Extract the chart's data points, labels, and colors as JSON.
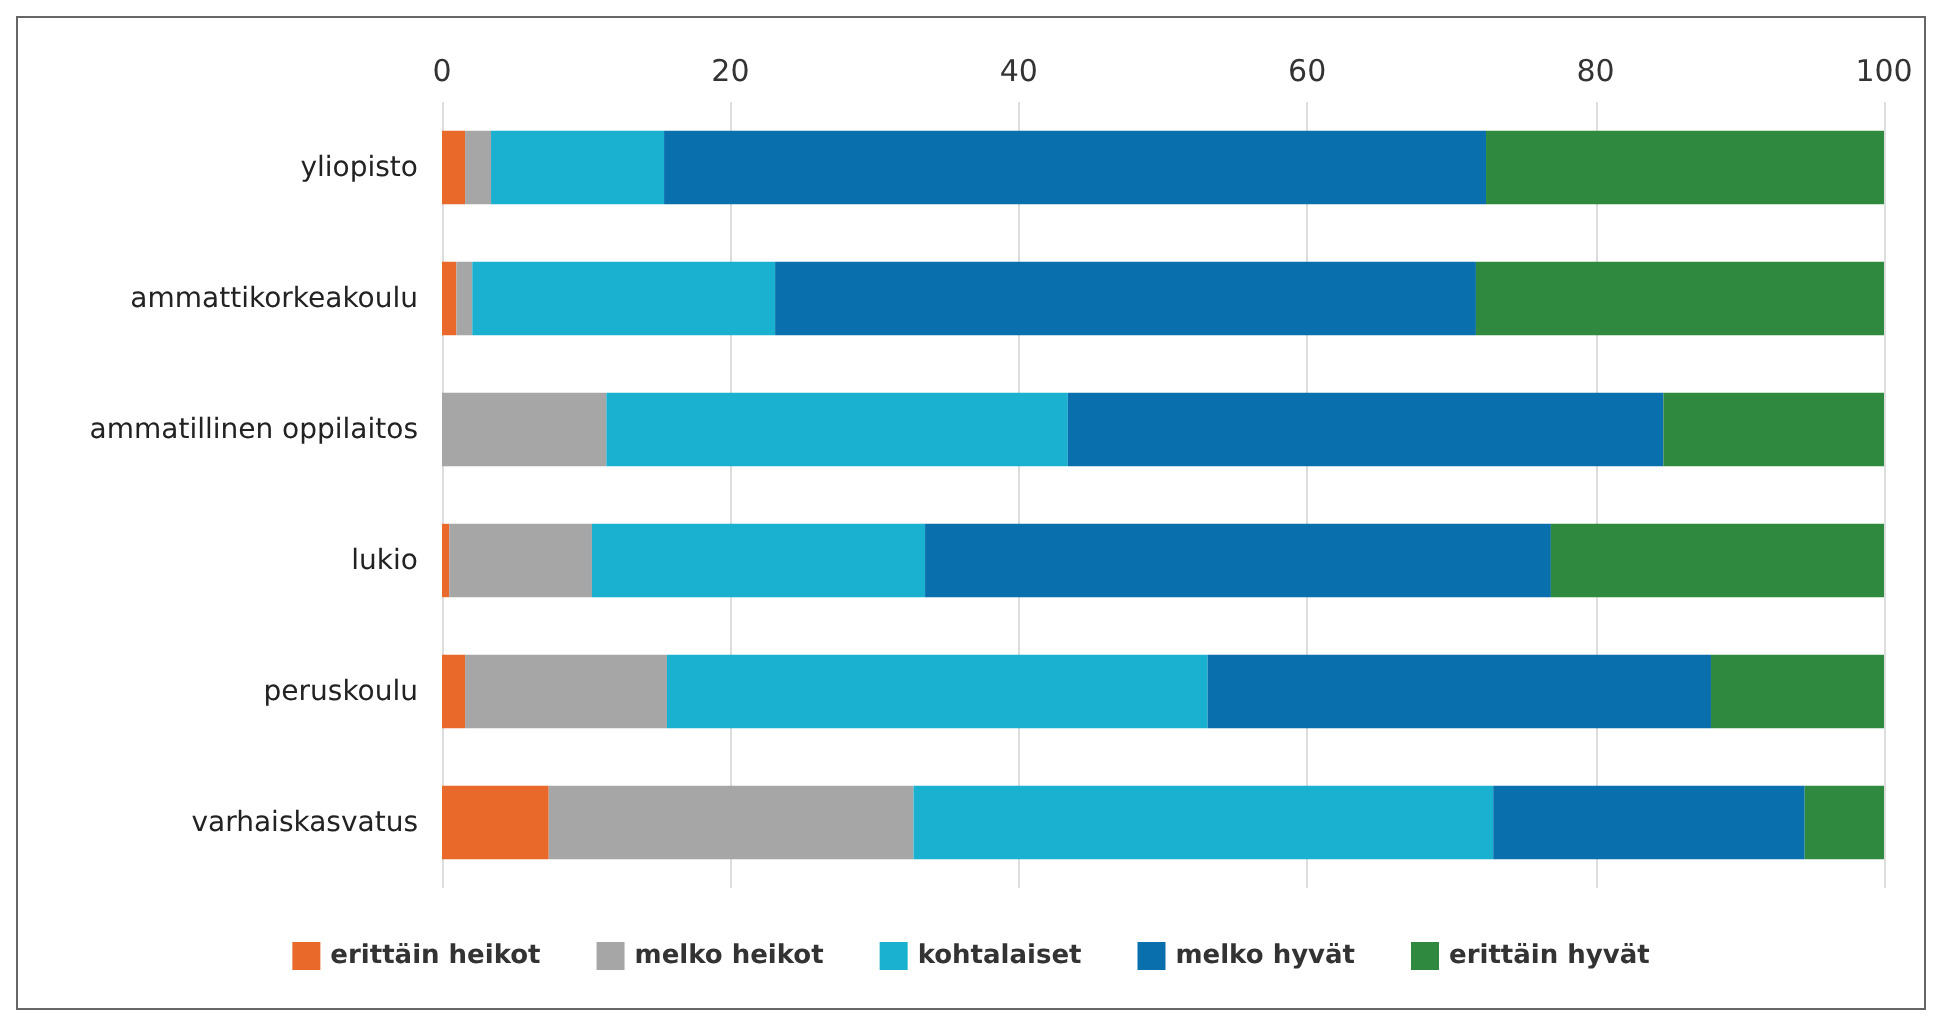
{
  "chart_data": {
    "type": "bar",
    "orientation": "horizontal",
    "stacked": true,
    "categories": [
      "yliopisto",
      "ammattikorkeakoulu",
      "ammatillinen oppilaitos",
      "lukio",
      "peruskoulu",
      "varhaiskasvatus"
    ],
    "series": [
      {
        "name": "erittäin heikot",
        "color": "#e8692a",
        "values": [
          1.6,
          1.0,
          0,
          0.5,
          1.6,
          7.4
        ]
      },
      {
        "name": "melko heikot",
        "color": "#a6a6a6",
        "values": [
          1.8,
          1.1,
          11.4,
          9.9,
          14.0,
          25.3
        ]
      },
      {
        "name": "kohtalaiset",
        "color": "#1ab0d0",
        "values": [
          12.0,
          21.0,
          32.0,
          23.1,
          37.5,
          40.2
        ]
      },
      {
        "name": "melko hyvät",
        "color": "#0a6fad",
        "values": [
          57.0,
          48.6,
          41.3,
          43.4,
          34.9,
          21.6
        ]
      },
      {
        "name": "erittäin hyvät",
        "color": "#2f8a3f",
        "values": [
          27.6,
          28.3,
          15.3,
          23.1,
          12.0,
          5.5
        ]
      }
    ],
    "xlim": [
      0,
      100
    ],
    "xticks": [
      0,
      20,
      40,
      60,
      80,
      100
    ],
    "grid": "x",
    "legend": "bottom"
  }
}
